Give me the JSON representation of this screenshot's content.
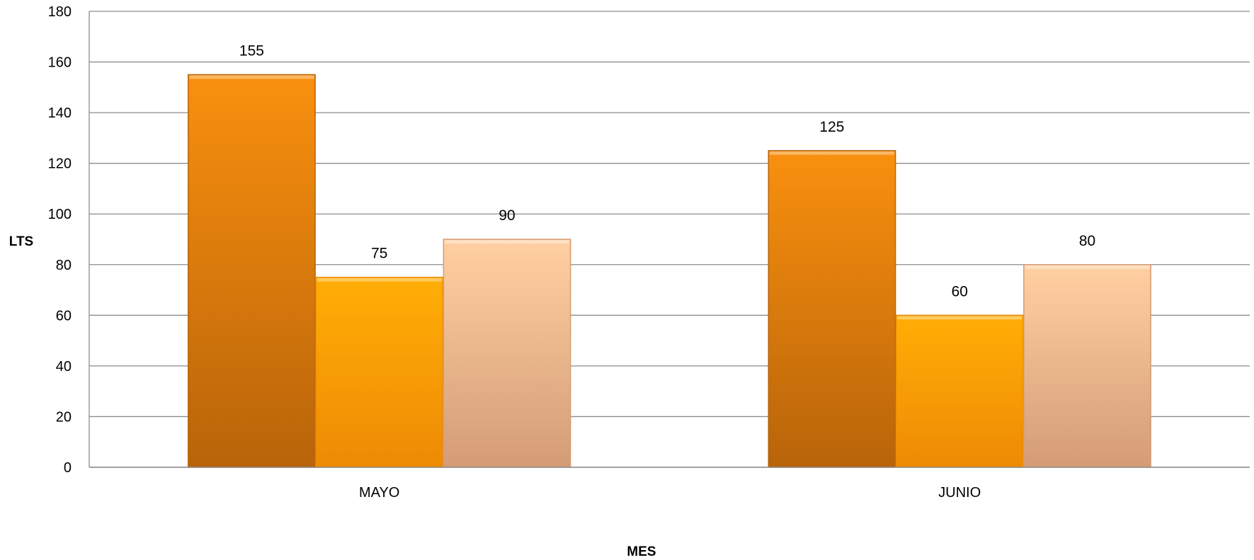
{
  "chart_data": {
    "type": "bar",
    "title": "",
    "xlabel": "MES",
    "ylabel": "LTS",
    "ylim": [
      0,
      180
    ],
    "ytick_step": 20,
    "categories": [
      "MAYO",
      "JUNIO"
    ],
    "grid": true,
    "legend": "none",
    "series": [
      {
        "values": [
          155,
          125
        ],
        "colors": [
          "#F9900E",
          "#B8640A"
        ]
      },
      {
        "values": [
          75,
          60
        ],
        "colors": [
          "#FFAE05",
          "#EE8A05"
        ]
      },
      {
        "values": [
          90,
          80
        ],
        "colors": [
          "#FFD0A2",
          "#D49C76"
        ]
      }
    ]
  }
}
